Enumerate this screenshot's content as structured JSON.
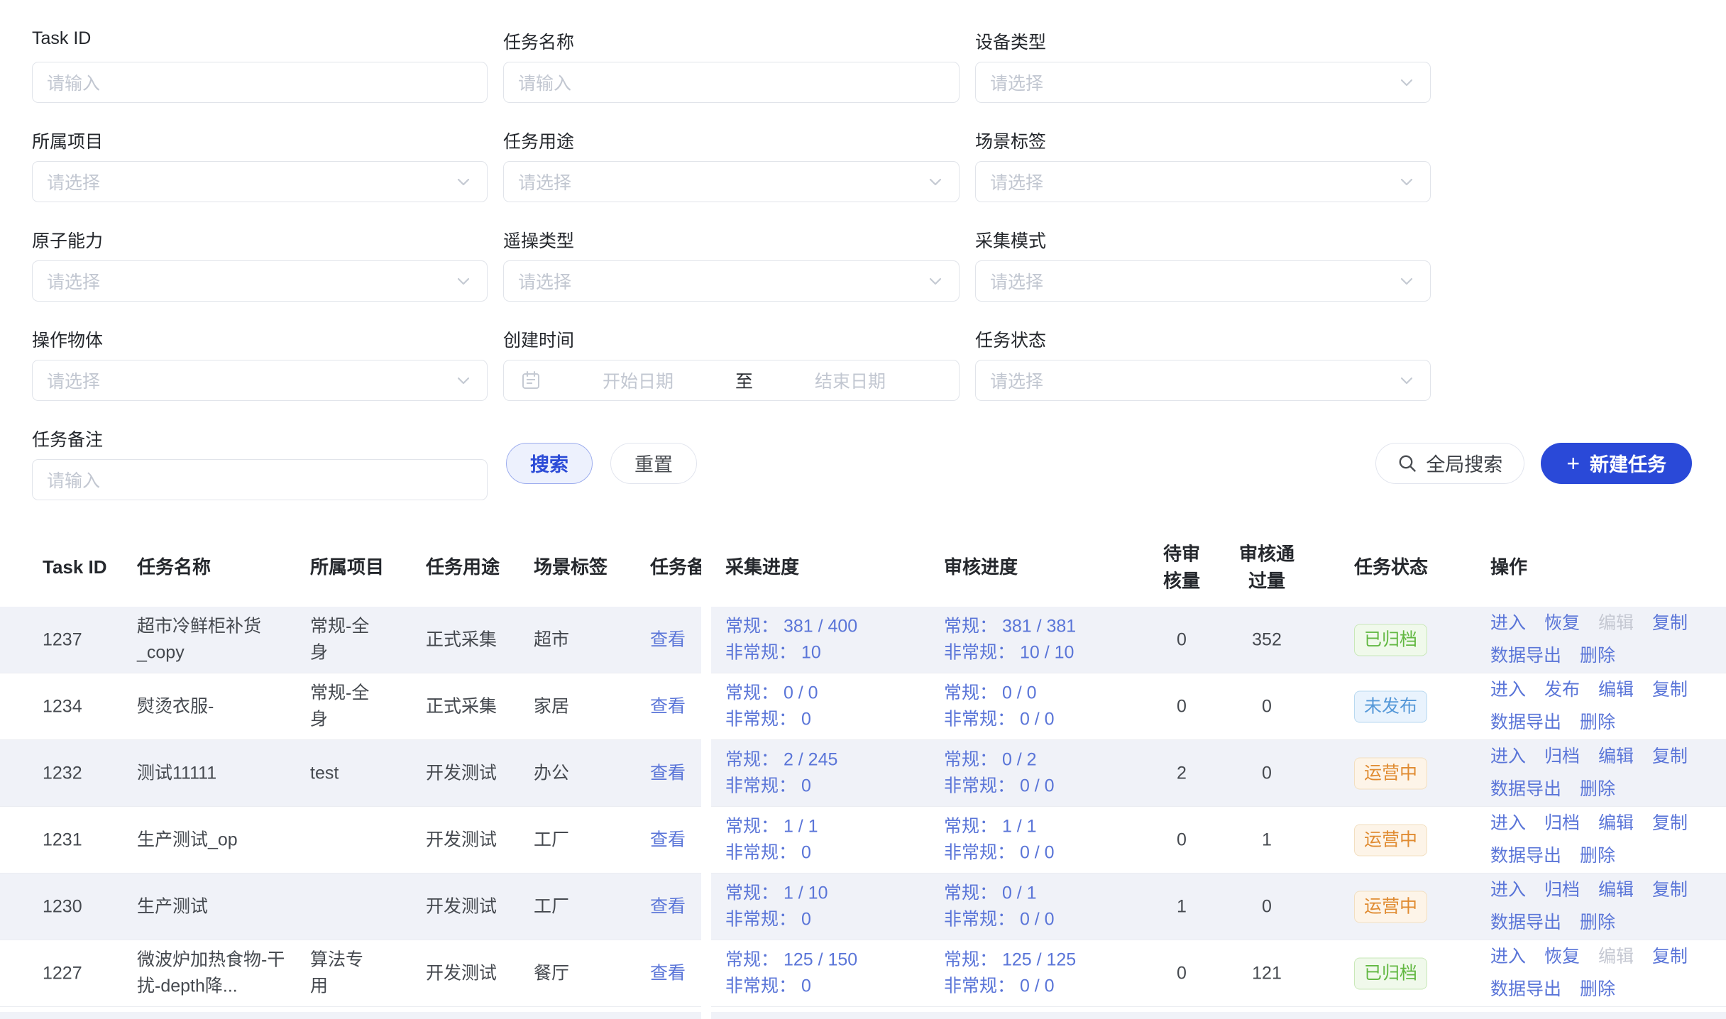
{
  "form": {
    "fields": [
      {
        "key": "task_id",
        "label": "Task ID",
        "type": "input",
        "placeholder": "请输入"
      },
      {
        "key": "task_name",
        "label": "任务名称",
        "type": "input",
        "placeholder": "请输入"
      },
      {
        "key": "device_type",
        "label": "设备类型",
        "type": "select",
        "placeholder": "请选择"
      },
      {
        "key": "project",
        "label": "所属项目",
        "type": "select",
        "placeholder": "请选择"
      },
      {
        "key": "task_purpose",
        "label": "任务用途",
        "type": "select",
        "placeholder": "请选择"
      },
      {
        "key": "scene_tag",
        "label": "场景标签",
        "type": "select",
        "placeholder": "请选择"
      },
      {
        "key": "atomic_capability",
        "label": "原子能力",
        "type": "select",
        "placeholder": "请选择"
      },
      {
        "key": "teleop_type",
        "label": "遥操类型",
        "type": "select",
        "placeholder": "请选择"
      },
      {
        "key": "collect_mode",
        "label": "采集模式",
        "type": "select",
        "placeholder": "请选择"
      },
      {
        "key": "operation_object",
        "label": "操作物体",
        "type": "select",
        "placeholder": "请选择"
      },
      {
        "key": "create_time",
        "label": "创建时间",
        "type": "daterange",
        "start_placeholder": "开始日期",
        "separator": "至",
        "end_placeholder": "结束日期"
      },
      {
        "key": "task_status",
        "label": "任务状态",
        "type": "select",
        "placeholder": "请选择"
      },
      {
        "key": "task_remark",
        "label": "任务备注",
        "type": "input",
        "placeholder": "请输入"
      }
    ],
    "search_label": "搜索",
    "reset_label": "重置"
  },
  "toolbar": {
    "global_search_label": "全局搜索",
    "new_task_plus": "+",
    "new_task_label": "新建任务"
  },
  "table": {
    "columns": [
      "Task ID",
      "任务名称",
      "所属项目",
      "任务用途",
      "场景标签",
      "任务备注",
      "采集进度",
      "审核进度",
      "待审核量",
      "审核通过量",
      "任务状态",
      "操作"
    ],
    "progress_labels": {
      "regular": "常规：",
      "irregular": "非常规："
    },
    "remark_link_label": "查看",
    "rows": [
      {
        "task_id": "1237",
        "name": "超市冷鲜柜补货_copy",
        "project": "常规-全身",
        "purpose": "正式采集",
        "scene": "超市",
        "collect": {
          "regular": "381 / 400",
          "irregular": "10"
        },
        "review": {
          "regular": "381 / 381",
          "irregular": "10 / 10"
        },
        "pending": "0",
        "approved": "352",
        "status": {
          "label": "已归档",
          "type": "archived"
        },
        "actions": [
          {
            "key": "enter",
            "label": "进入",
            "enabled": true
          },
          {
            "key": "restore",
            "label": "恢复",
            "enabled": true
          },
          {
            "key": "edit",
            "label": "编辑",
            "enabled": false
          },
          {
            "key": "copy",
            "label": "复制",
            "enabled": true
          },
          {
            "key": "export",
            "label": "数据导出",
            "enabled": true
          },
          {
            "key": "delete",
            "label": "删除",
            "enabled": true
          }
        ]
      },
      {
        "task_id": "1234",
        "name": "熨烫衣服-",
        "project": "常规-全身",
        "purpose": "正式采集",
        "scene": "家居",
        "collect": {
          "regular": "0 / 0",
          "irregular": "0"
        },
        "review": {
          "regular": "0 / 0",
          "irregular": "0 / 0"
        },
        "pending": "0",
        "approved": "0",
        "status": {
          "label": "未发布",
          "type": "unpublished"
        },
        "actions": [
          {
            "key": "enter",
            "label": "进入",
            "enabled": true
          },
          {
            "key": "publish",
            "label": "发布",
            "enabled": true
          },
          {
            "key": "edit",
            "label": "编辑",
            "enabled": true
          },
          {
            "key": "copy",
            "label": "复制",
            "enabled": true
          },
          {
            "key": "export",
            "label": "数据导出",
            "enabled": true
          },
          {
            "key": "delete",
            "label": "删除",
            "enabled": true
          }
        ]
      },
      {
        "task_id": "1232",
        "name": "测试11111",
        "project": "test",
        "purpose": "开发测试",
        "scene": "办公",
        "collect": {
          "regular": "2 / 245",
          "irregular": "0"
        },
        "review": {
          "regular": "0 / 2",
          "irregular": "0 / 0"
        },
        "pending": "2",
        "approved": "0",
        "status": {
          "label": "运营中",
          "type": "operating"
        },
        "actions": [
          {
            "key": "enter",
            "label": "进入",
            "enabled": true
          },
          {
            "key": "archive",
            "label": "归档",
            "enabled": true
          },
          {
            "key": "edit",
            "label": "编辑",
            "enabled": true
          },
          {
            "key": "copy",
            "label": "复制",
            "enabled": true
          },
          {
            "key": "export",
            "label": "数据导出",
            "enabled": true
          },
          {
            "key": "delete",
            "label": "删除",
            "enabled": true
          }
        ]
      },
      {
        "task_id": "1231",
        "name": "生产测试_op",
        "project": "",
        "purpose": "开发测试",
        "scene": "工厂",
        "collect": {
          "regular": "1 / 1",
          "irregular": "0"
        },
        "review": {
          "regular": "1 / 1",
          "irregular": "0 / 0"
        },
        "pending": "0",
        "approved": "1",
        "status": {
          "label": "运营中",
          "type": "operating"
        },
        "actions": [
          {
            "key": "enter",
            "label": "进入",
            "enabled": true
          },
          {
            "key": "archive",
            "label": "归档",
            "enabled": true
          },
          {
            "key": "edit",
            "label": "编辑",
            "enabled": true
          },
          {
            "key": "copy",
            "label": "复制",
            "enabled": true
          },
          {
            "key": "export",
            "label": "数据导出",
            "enabled": true
          },
          {
            "key": "delete",
            "label": "删除",
            "enabled": true
          }
        ]
      },
      {
        "task_id": "1230",
        "name": "生产测试",
        "project": "",
        "purpose": "开发测试",
        "scene": "工厂",
        "collect": {
          "regular": "1 / 10",
          "irregular": "0"
        },
        "review": {
          "regular": "0 / 1",
          "irregular": "0 / 0"
        },
        "pending": "1",
        "approved": "0",
        "status": {
          "label": "运营中",
          "type": "operating"
        },
        "actions": [
          {
            "key": "enter",
            "label": "进入",
            "enabled": true
          },
          {
            "key": "archive",
            "label": "归档",
            "enabled": true
          },
          {
            "key": "edit",
            "label": "编辑",
            "enabled": true
          },
          {
            "key": "copy",
            "label": "复制",
            "enabled": true
          },
          {
            "key": "export",
            "label": "数据导出",
            "enabled": true
          },
          {
            "key": "delete",
            "label": "删除",
            "enabled": true
          }
        ]
      },
      {
        "task_id": "1227",
        "name": "微波炉加热食物-干扰-depth降...",
        "project": "算法专用",
        "purpose": "开发测试",
        "scene": "餐厅",
        "collect": {
          "regular": "125 / 150",
          "irregular": "0"
        },
        "review": {
          "regular": "125 / 125",
          "irregular": "0 / 0"
        },
        "pending": "0",
        "approved": "121",
        "status": {
          "label": "已归档",
          "type": "archived"
        },
        "actions": [
          {
            "key": "enter",
            "label": "进入",
            "enabled": true
          },
          {
            "key": "restore",
            "label": "恢复",
            "enabled": true
          },
          {
            "key": "edit",
            "label": "编辑",
            "enabled": false
          },
          {
            "key": "copy",
            "label": "复制",
            "enabled": true
          },
          {
            "key": "export",
            "label": "数据导出",
            "enabled": true
          },
          {
            "key": "delete",
            "label": "删除",
            "enabled": true
          }
        ]
      }
    ]
  }
}
